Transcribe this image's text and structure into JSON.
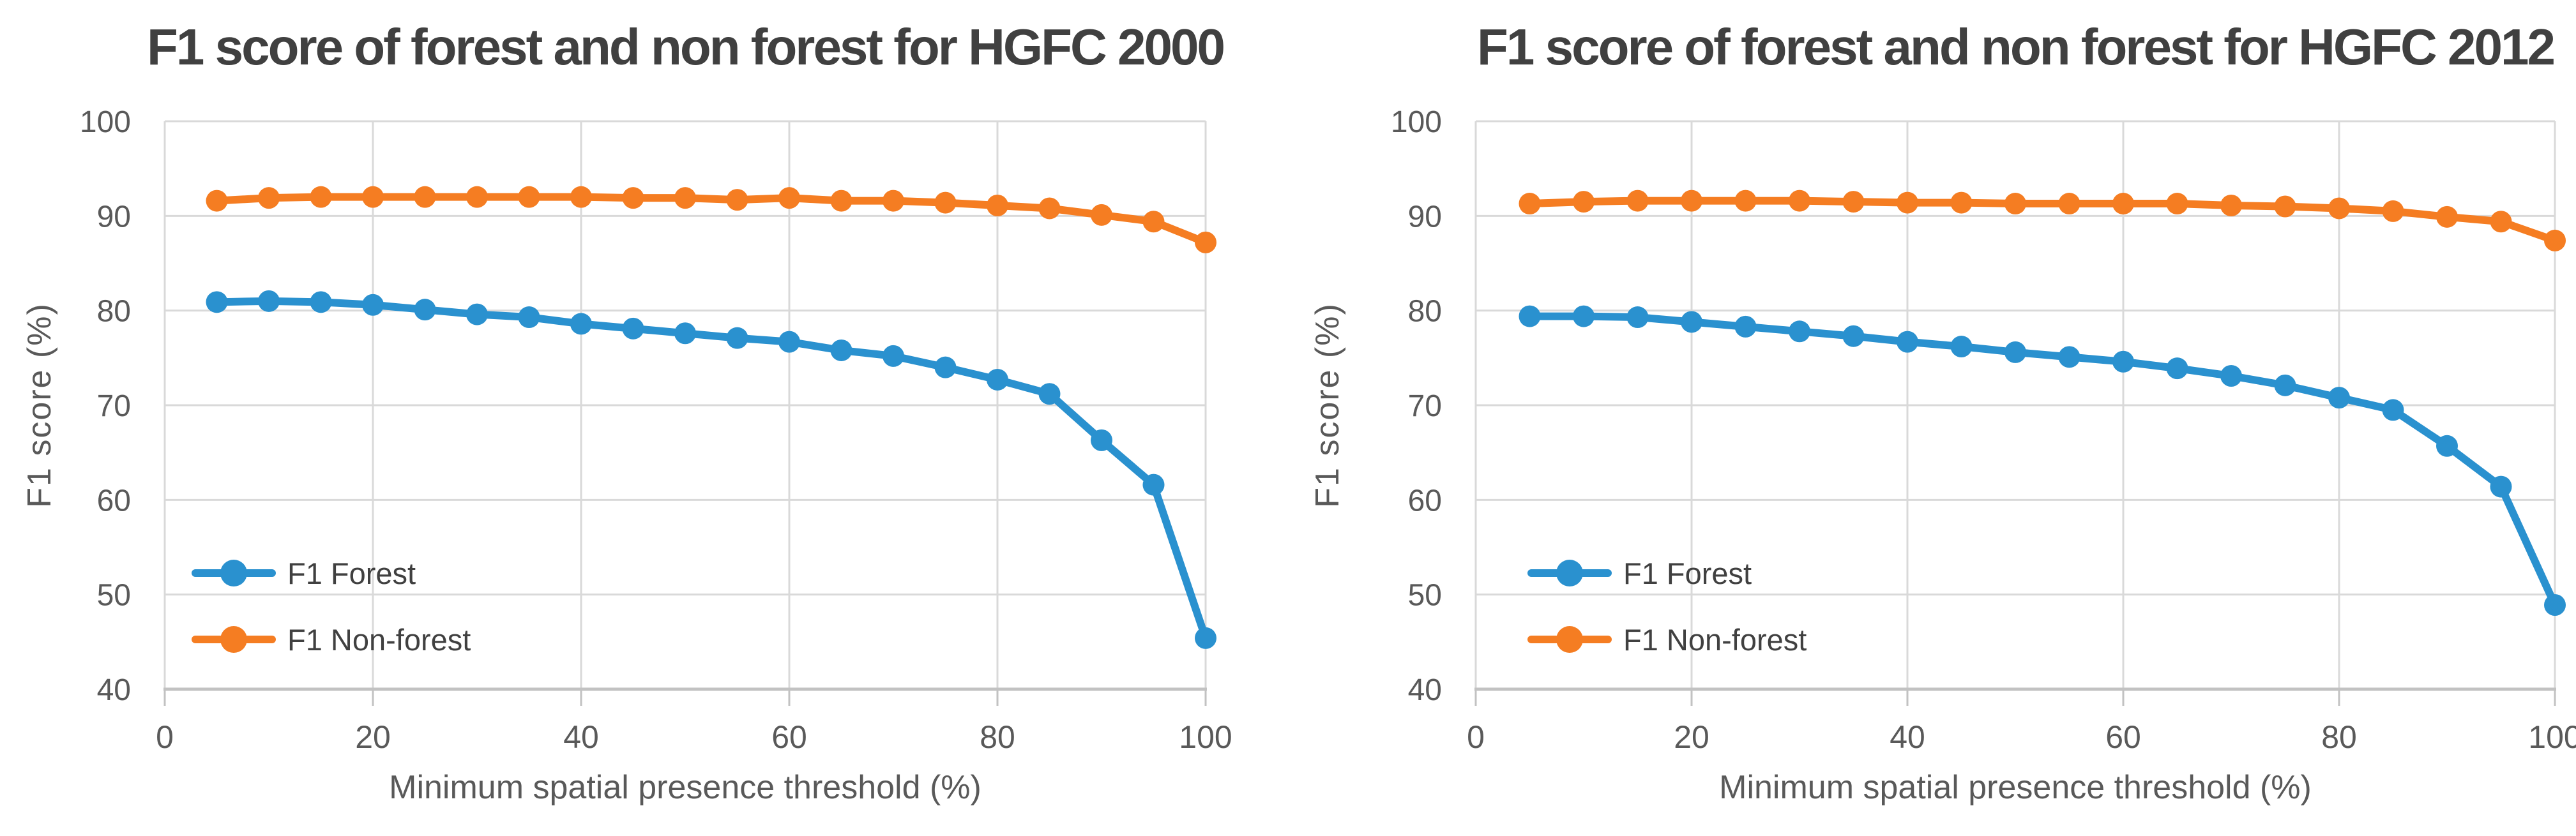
{
  "colors": {
    "forest": "#2A91CF",
    "non_forest": "#F57D22",
    "gridline": "#D9D9D9",
    "axis_line": "#C2C2C2",
    "tick_label": "#595959",
    "axis_title": "#595959",
    "chart_title": "#404040",
    "legend_label": "#404040",
    "background": "#FFFFFF"
  },
  "chart_data": [
    {
      "type": "line",
      "title": "F1 score of forest and non forest for HGFC 2000",
      "xlabel": "Minimum spatial presence threshold (%)",
      "ylabel": "F1 score (%)",
      "xlim": [
        0,
        100
      ],
      "ylim": [
        40,
        100
      ],
      "x_ticks": [
        0,
        20,
        40,
        60,
        80,
        100
      ],
      "y_ticks": [
        40,
        50,
        60,
        70,
        80,
        90,
        100
      ],
      "grid": true,
      "legend_position": "inside-lower-left",
      "x": [
        5,
        10,
        15,
        20,
        25,
        30,
        35,
        40,
        45,
        50,
        55,
        60,
        65,
        70,
        75,
        80,
        85,
        90,
        95,
        100
      ],
      "series": [
        {
          "name": "F1 Forest",
          "color": "forest",
          "values": [
            80.9,
            81.0,
            80.9,
            80.6,
            80.1,
            79.6,
            79.3,
            78.6,
            78.1,
            77.6,
            77.1,
            76.7,
            75.8,
            75.2,
            74.0,
            72.7,
            71.2,
            66.3,
            61.6,
            45.4
          ]
        },
        {
          "name": "F1 Non-forest",
          "color": "non_forest",
          "values": [
            91.6,
            91.9,
            92.0,
            92.0,
            92.0,
            92.0,
            92.0,
            92.0,
            91.9,
            91.9,
            91.7,
            91.9,
            91.6,
            91.6,
            91.4,
            91.1,
            90.8,
            90.1,
            89.4,
            87.2
          ]
        }
      ]
    },
    {
      "type": "line",
      "title": "F1 score of forest and non forest for HGFC 2012",
      "xlabel": "Minimum spatial presence threshold (%)",
      "ylabel": "F1 score (%)",
      "xlim": [
        0,
        100
      ],
      "ylim": [
        40,
        100
      ],
      "x_ticks": [
        0,
        20,
        40,
        60,
        80,
        100
      ],
      "y_ticks": [
        40,
        50,
        60,
        70,
        80,
        90,
        100
      ],
      "grid": true,
      "legend_position": "inside-lower-left",
      "x": [
        5,
        10,
        15,
        20,
        25,
        30,
        35,
        40,
        45,
        50,
        55,
        60,
        65,
        70,
        75,
        80,
        85,
        90,
        95,
        100
      ],
      "series": [
        {
          "name": "F1 Forest",
          "color": "forest",
          "values": [
            79.4,
            79.4,
            79.3,
            78.8,
            78.3,
            77.8,
            77.3,
            76.7,
            76.2,
            75.6,
            75.1,
            74.6,
            73.9,
            73.1,
            72.1,
            70.8,
            69.5,
            65.7,
            61.4,
            48.9
          ]
        },
        {
          "name": "F1 Non-forest",
          "color": "non_forest",
          "values": [
            91.3,
            91.5,
            91.6,
            91.6,
            91.6,
            91.6,
            91.5,
            91.4,
            91.4,
            91.3,
            91.3,
            91.3,
            91.3,
            91.1,
            91.0,
            90.8,
            90.5,
            89.9,
            89.4,
            87.4
          ]
        }
      ]
    }
  ]
}
